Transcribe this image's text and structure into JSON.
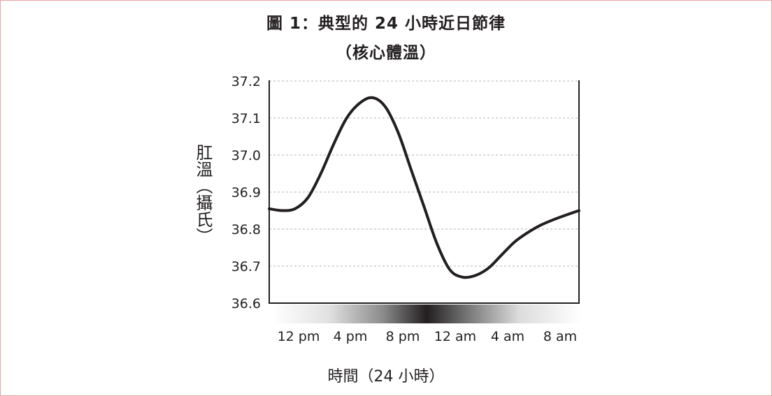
{
  "chart_data": {
    "type": "line",
    "title": "圖 1：典型的 24 小時近日節律",
    "subtitle": "（核心體溫）",
    "xlabel": "時間（24 小時）",
    "ylabel": "肛溫（攝氏）",
    "x_ticks": [
      "12 pm",
      "4 pm",
      "8 pm",
      "12 am",
      "4 am",
      "8 am"
    ],
    "y_ticks": [
      "36.6",
      "36.7",
      "36.8",
      "36.9",
      "37.0",
      "37.1",
      "37.2"
    ],
    "ylim": [
      36.6,
      37.2
    ],
    "xlim": [
      10,
      34
    ],
    "grid": "horizontal dashed",
    "series": [
      {
        "x": [
          10,
          11,
          12,
          13,
          14,
          15,
          16,
          17,
          18,
          19,
          20,
          21,
          22,
          23,
          24,
          25,
          26,
          27,
          28,
          29,
          30,
          31,
          32,
          33,
          34
        ],
        "values": [
          36.855,
          36.85,
          36.855,
          36.885,
          36.95,
          37.03,
          37.1,
          37.14,
          37.155,
          37.13,
          37.06,
          36.96,
          36.86,
          36.76,
          36.69,
          36.67,
          36.675,
          36.695,
          36.73,
          36.765,
          36.79,
          36.81,
          36.825,
          36.838,
          36.85
        ]
      }
    ],
    "gradient_bar": "light - dark at 12 am - light"
  }
}
